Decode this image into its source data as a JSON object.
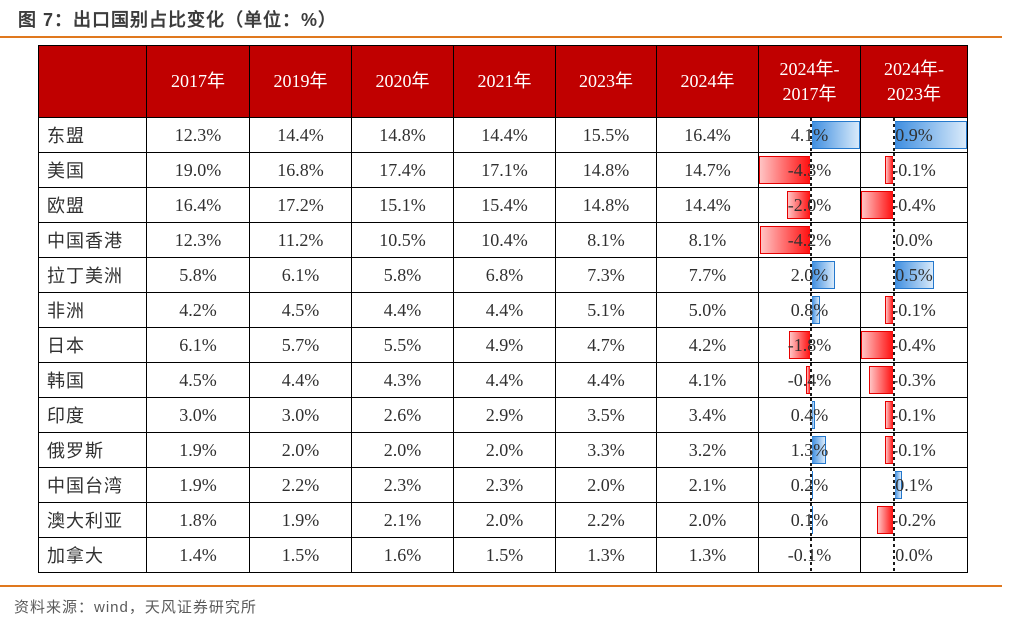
{
  "title": "图 7：出口国别占比变化（单位：%）",
  "source": "资料来源：wind，天风证券研究所",
  "colors": {
    "header_bg": "#c00000",
    "header_text": "#ffffff",
    "accent_line": "#e0781e",
    "bar_positive": "#3e8ee0",
    "bar_positive_border": "#2478cc",
    "bar_negative": "#ff0f0f",
    "bar_negative_border": "#e60000",
    "grid_border": "#000000",
    "cell_text": "#303030",
    "source_text": "#5a5a5a"
  },
  "chart_data": {
    "type": "table",
    "title": "图 7：出口国别占比变化（单位：%）",
    "unit": "%",
    "columns": [
      "2017年",
      "2019年",
      "2020年",
      "2021年",
      "2023年",
      "2024年",
      "2024年-2017年",
      "2024年-2023年"
    ],
    "rows": [
      {
        "label": "东盟",
        "values": [
          12.3,
          14.4,
          14.8,
          14.4,
          15.5,
          16.4
        ],
        "diff_2024_2017": 4.1,
        "diff_2024_2023": 0.9
      },
      {
        "label": "美国",
        "values": [
          19.0,
          16.8,
          17.4,
          17.1,
          14.8,
          14.7
        ],
        "diff_2024_2017": -4.3,
        "diff_2024_2023": -0.1
      },
      {
        "label": "欧盟",
        "values": [
          16.4,
          17.2,
          15.1,
          15.4,
          14.8,
          14.4
        ],
        "diff_2024_2017": -2.0,
        "diff_2024_2023": -0.4
      },
      {
        "label": "中国香港",
        "values": [
          12.3,
          11.2,
          10.5,
          10.4,
          8.1,
          8.1
        ],
        "diff_2024_2017": -4.2,
        "diff_2024_2023": 0.0
      },
      {
        "label": "拉丁美洲",
        "values": [
          5.8,
          6.1,
          5.8,
          6.8,
          7.3,
          7.7
        ],
        "diff_2024_2017": 2.0,
        "diff_2024_2023": 0.5
      },
      {
        "label": "非洲",
        "values": [
          4.2,
          4.5,
          4.4,
          4.4,
          5.1,
          5.0
        ],
        "diff_2024_2017": 0.8,
        "diff_2024_2023": -0.1
      },
      {
        "label": "日本",
        "values": [
          6.1,
          5.7,
          5.5,
          4.9,
          4.7,
          4.2
        ],
        "diff_2024_2017": -1.8,
        "diff_2024_2023": -0.4
      },
      {
        "label": "韩国",
        "values": [
          4.5,
          4.4,
          4.3,
          4.4,
          4.4,
          4.1
        ],
        "diff_2024_2017": -0.4,
        "diff_2024_2023": -0.3
      },
      {
        "label": "印度",
        "values": [
          3.0,
          3.0,
          2.6,
          2.9,
          3.5,
          3.4
        ],
        "diff_2024_2017": 0.4,
        "diff_2024_2023": -0.1
      },
      {
        "label": "俄罗斯",
        "values": [
          1.9,
          2.0,
          2.0,
          2.0,
          3.3,
          3.2
        ],
        "diff_2024_2017": 1.3,
        "diff_2024_2023": -0.1
      },
      {
        "label": "中国台湾",
        "values": [
          1.9,
          2.2,
          2.3,
          2.3,
          2.0,
          2.1
        ],
        "diff_2024_2017": 0.2,
        "diff_2024_2023": 0.1
      },
      {
        "label": "澳大利亚",
        "values": [
          1.8,
          1.9,
          2.1,
          2.0,
          2.2,
          2.0
        ],
        "diff_2024_2017": 0.1,
        "diff_2024_2023": -0.2
      },
      {
        "label": "加拿大",
        "values": [
          1.4,
          1.5,
          1.6,
          1.5,
          1.3,
          1.3
        ],
        "diff_2024_2017": -0.1,
        "diff_2024_2023": 0.0
      }
    ],
    "databars": [
      {
        "column": "2024年-2017年",
        "min": -4.3,
        "max": 4.1,
        "positive_color": "#3e8ee0",
        "negative_color": "#ff0f0f",
        "axis_style": "dashed"
      },
      {
        "column": "2024年-2023年",
        "min": -0.4,
        "max": 0.9,
        "positive_color": "#3e8ee0",
        "negative_color": "#ff0f0f",
        "axis_style": "dashed"
      }
    ],
    "source": "资料来源：wind，天风证券研究所"
  }
}
